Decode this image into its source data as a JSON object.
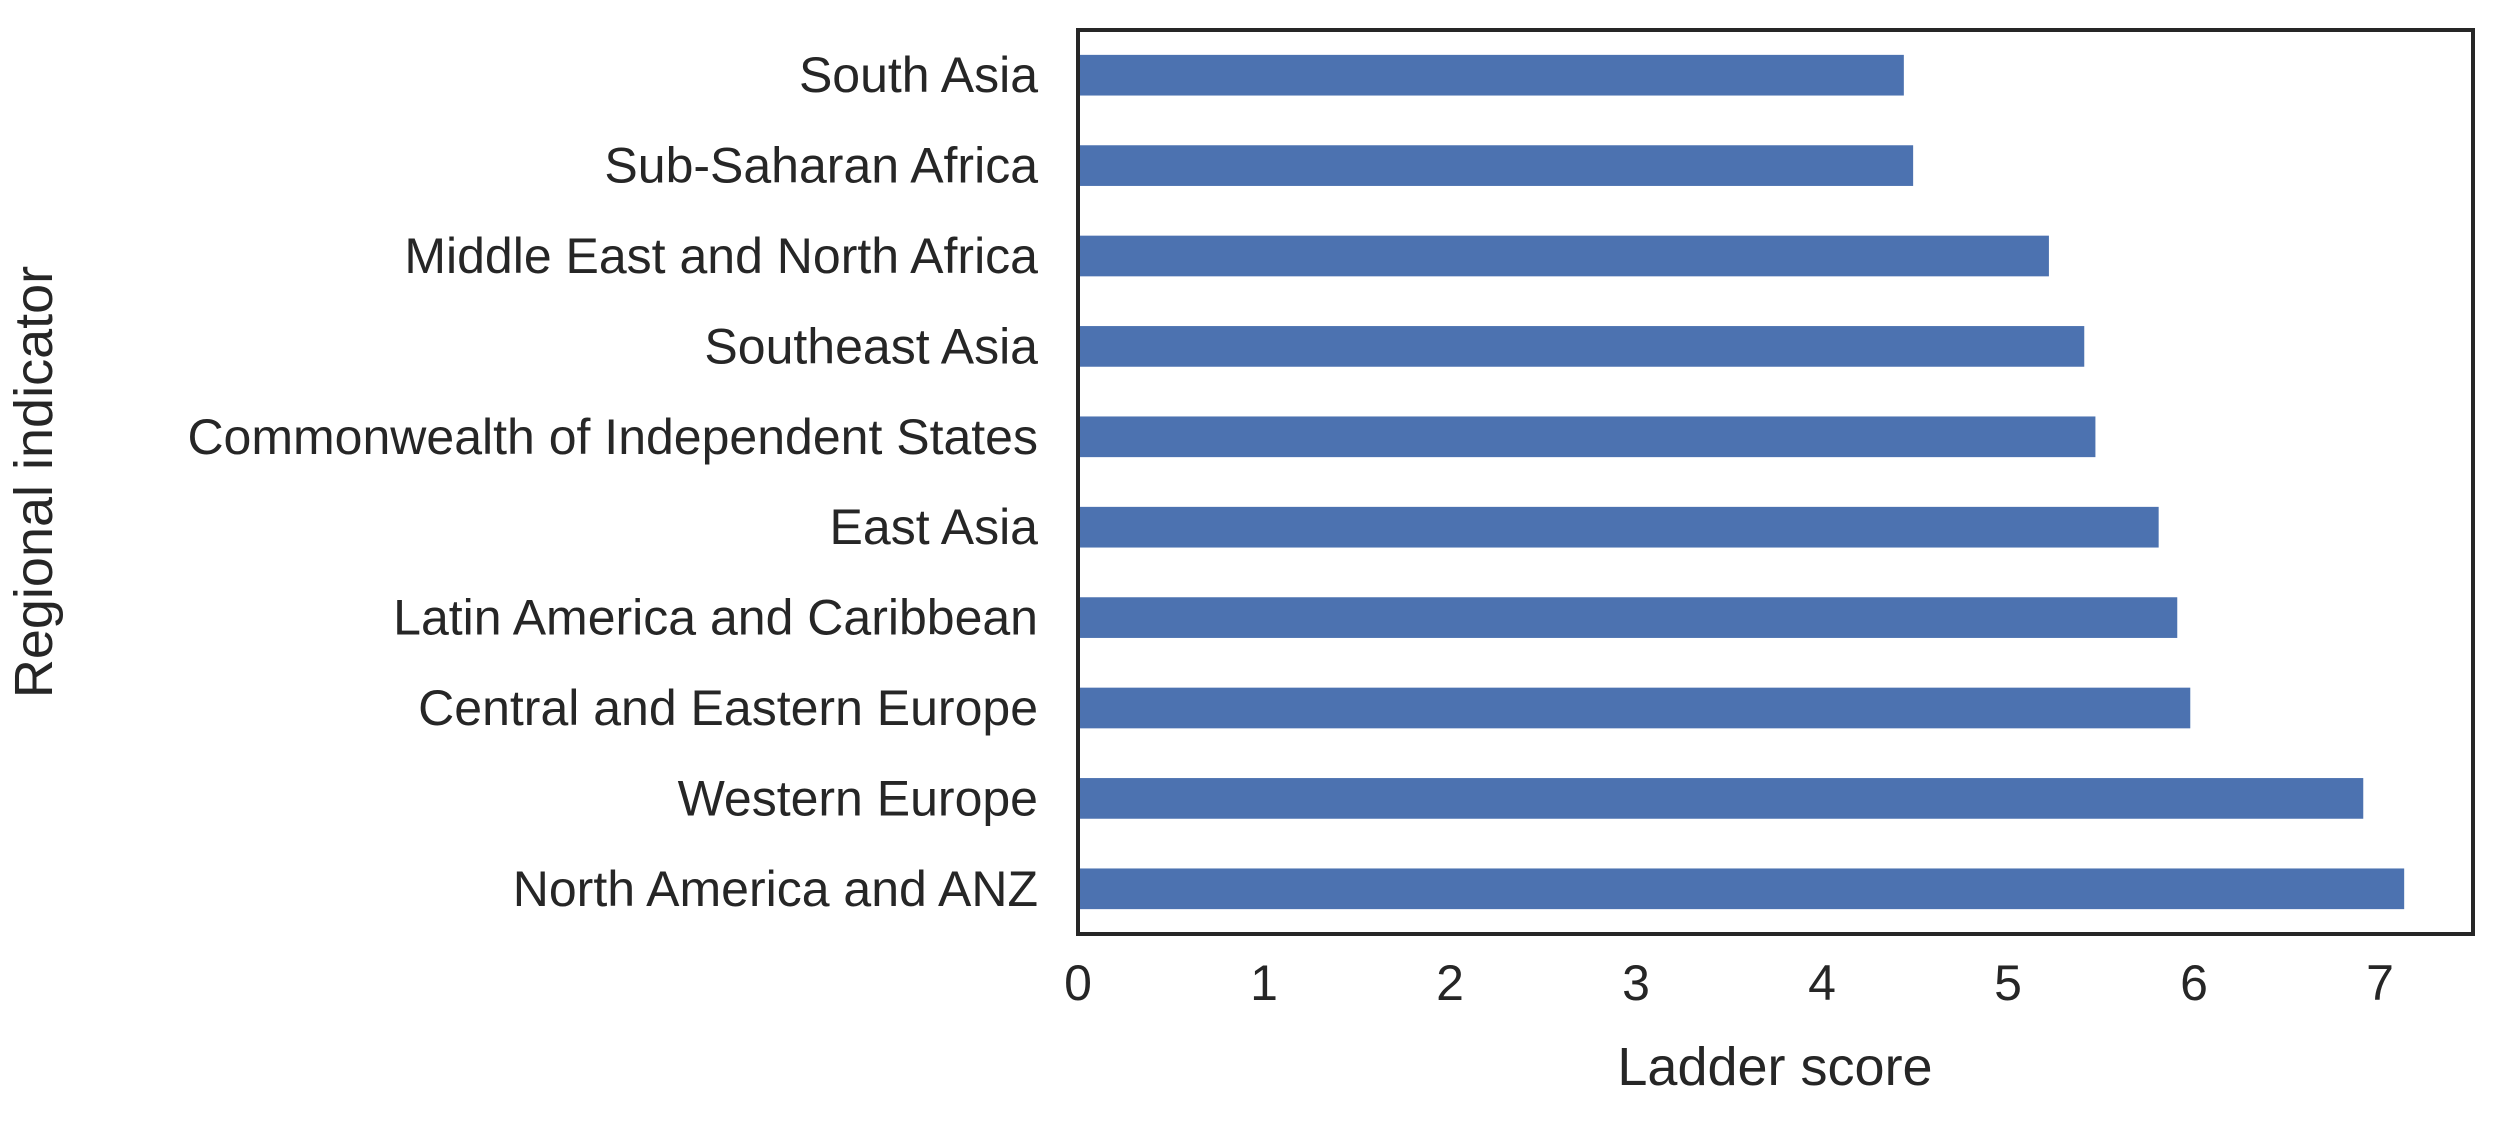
{
  "chart_data": {
    "type": "bar",
    "orientation": "horizontal",
    "title": "",
    "xlabel": "Ladder score",
    "ylabel": "Regional indicator",
    "categories": [
      "South Asia",
      "Sub-Saharan Africa",
      "Middle East and North Africa",
      "Southeast Asia",
      "Commonwealth of Independent States",
      "East Asia",
      "Latin America and Caribbean",
      "Central and Eastern Europe",
      "Western Europe",
      "North America and ANZ"
    ],
    "values": [
      4.44,
      4.49,
      5.22,
      5.41,
      5.47,
      5.81,
      5.91,
      5.98,
      6.91,
      7.13
    ],
    "xlim": [
      0,
      7.5
    ],
    "xticks": [
      0,
      1,
      2,
      3,
      4,
      5,
      6,
      7
    ],
    "grid": false,
    "bar_color": "#4c72b0",
    "frame_color": "#262626"
  }
}
